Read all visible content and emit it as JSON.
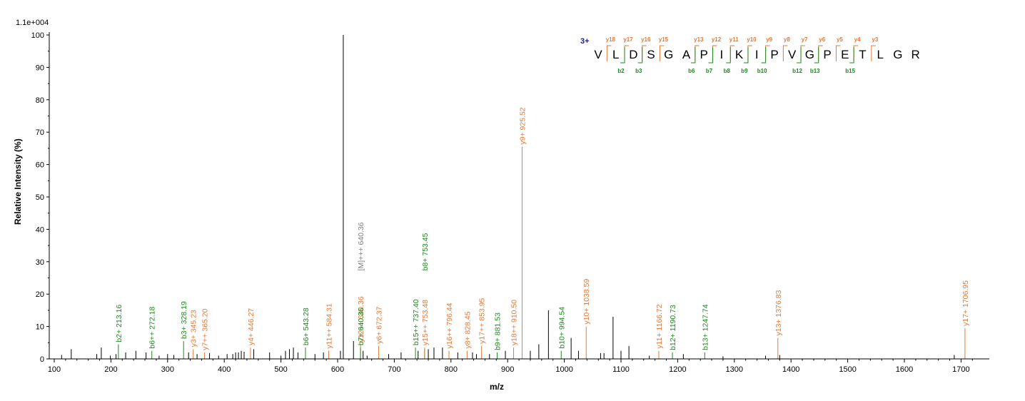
{
  "chart_data": {
    "type": "bar",
    "scale_label": "1.1e+004",
    "xlabel": "m/z",
    "ylabel": "Relative   Intensity (%)",
    "xlim": [
      100,
      1740
    ],
    "ylim": [
      0,
      100
    ],
    "x_ticks": [
      100,
      200,
      300,
      400,
      500,
      600,
      700,
      800,
      900,
      1000,
      1100,
      1200,
      1300,
      1400,
      1500,
      1600,
      1700
    ],
    "y_ticks": [
      0,
      10,
      20,
      30,
      40,
      50,
      60,
      70,
      80,
      90,
      100
    ],
    "colors": {
      "y_ion": "#e07b39",
      "b_ion": "#1e8a1e",
      "precursor": "#808080",
      "unassigned": "#000000",
      "charge": "#1a1a9e"
    },
    "annotated_peaks": [
      {
        "mz": 213.16,
        "intensity": 4.5,
        "label": "b2+ 213.16",
        "ion": "b"
      },
      {
        "mz": 272.18,
        "intensity": 2.5,
        "label": "b6++ 272.18",
        "ion": "b"
      },
      {
        "mz": 328.19,
        "intensity": 5.5,
        "label": "b3+ 328.19",
        "ion": "b"
      },
      {
        "mz": 345.23,
        "intensity": 3.0,
        "label": "y3+ 345.23",
        "ion": "y"
      },
      {
        "mz": 365.2,
        "intensity": 2.0,
        "label": "y7++ 365.20",
        "ion": "y"
      },
      {
        "mz": 446.27,
        "intensity": 3.5,
        "label": "y4+ 446.27",
        "ion": "y"
      },
      {
        "mz": 543.28,
        "intensity": 3.5,
        "label": "b6+ 543.28",
        "ion": "b"
      },
      {
        "mz": 584.31,
        "intensity": 2.5,
        "label": "y11++ 584.31",
        "ion": "y"
      },
      {
        "mz": 640.36,
        "intensity": 3.0,
        "label": "[M]+++ 640.36",
        "ion": "precursor",
        "label_high": true
      },
      {
        "mz": 640.36,
        "intensity": 4.5,
        "label": "y12++ 640.36",
        "ion": "y"
      },
      {
        "mz": 640.36,
        "intensity": 3.5,
        "label": "b7+ 640.36",
        "ion": "b"
      },
      {
        "mz": 672.37,
        "intensity": 4.0,
        "label": "y6+ 672.37",
        "ion": "y"
      },
      {
        "mz": 737.4,
        "intensity": 3.5,
        "label": "b15++ 737.40",
        "ion": "b"
      },
      {
        "mz": 753.45,
        "intensity": 3.0,
        "label": "b8+ 753.45",
        "ion": "b",
        "label_high": true
      },
      {
        "mz": 753.48,
        "intensity": 3.5,
        "label": "y15++ 753.48",
        "ion": "y"
      },
      {
        "mz": 796.44,
        "intensity": 2.5,
        "label": "y16++ 796.44",
        "ion": "y"
      },
      {
        "mz": 828.45,
        "intensity": 2.5,
        "label": "y8+ 828.45",
        "ion": "y"
      },
      {
        "mz": 853.95,
        "intensity": 4.0,
        "label": "y17++ 853.95",
        "ion": "y"
      },
      {
        "mz": 881.53,
        "intensity": 2.0,
        "label": "b9+ 881.53",
        "ion": "b"
      },
      {
        "mz": 910.5,
        "intensity": 3.5,
        "label": "y18++ 910.50",
        "ion": "y"
      },
      {
        "mz": 925.52,
        "intensity": 65.5,
        "label": "y9+ 925.52",
        "ion": "y"
      },
      {
        "mz": 994.54,
        "intensity": 2.5,
        "label": "b10+ 994.54",
        "ion": "b"
      },
      {
        "mz": 1038.59,
        "intensity": 10.0,
        "label": "y10+ 1038.59",
        "ion": "y"
      },
      {
        "mz": 1166.72,
        "intensity": 2.5,
        "label": "y11+ 1166.72",
        "ion": "y"
      },
      {
        "mz": 1190.73,
        "intensity": 2.0,
        "label": "b12+ 1190.73",
        "ion": "b"
      },
      {
        "mz": 1247.74,
        "intensity": 2.0,
        "label": "b13+ 1247.74",
        "ion": "b"
      },
      {
        "mz": 1376.83,
        "intensity": 6.5,
        "label": "y13+ 1376.83",
        "ion": "y"
      },
      {
        "mz": 1706.95,
        "intensity": 9.5,
        "label": "y17+ 1706.95",
        "ion": "y"
      }
    ],
    "unassigned_peaks": [
      {
        "mz": 113,
        "intensity": 1.2
      },
      {
        "mz": 130,
        "intensity": 3.0
      },
      {
        "mz": 175,
        "intensity": 1.5
      },
      {
        "mz": 183,
        "intensity": 3.5
      },
      {
        "mz": 199,
        "intensity": 1.0
      },
      {
        "mz": 209,
        "intensity": 1.5
      },
      {
        "mz": 226,
        "intensity": 2.0
      },
      {
        "mz": 244,
        "intensity": 2.5
      },
      {
        "mz": 262,
        "intensity": 2.0
      },
      {
        "mz": 285,
        "intensity": 1.0
      },
      {
        "mz": 300,
        "intensity": 1.5
      },
      {
        "mz": 311,
        "intensity": 1.2
      },
      {
        "mz": 337,
        "intensity": 2.0
      },
      {
        "mz": 352,
        "intensity": 1.5
      },
      {
        "mz": 374,
        "intensity": 1.8
      },
      {
        "mz": 390,
        "intensity": 1.0
      },
      {
        "mz": 405,
        "intensity": 1.5
      },
      {
        "mz": 415,
        "intensity": 1.5
      },
      {
        "mz": 420,
        "intensity": 2.0
      },
      {
        "mz": 425,
        "intensity": 2.0
      },
      {
        "mz": 430,
        "intensity": 2.5
      },
      {
        "mz": 435,
        "intensity": 2.2
      },
      {
        "mz": 452,
        "intensity": 3.0
      },
      {
        "mz": 480,
        "intensity": 2.0
      },
      {
        "mz": 500,
        "intensity": 1.0
      },
      {
        "mz": 508,
        "intensity": 2.5
      },
      {
        "mz": 515,
        "intensity": 3.0
      },
      {
        "mz": 522,
        "intensity": 3.5
      },
      {
        "mz": 530,
        "intensity": 2.0
      },
      {
        "mz": 560,
        "intensity": 1.5
      },
      {
        "mz": 575,
        "intensity": 2.0
      },
      {
        "mz": 605,
        "intensity": 2.5
      },
      {
        "mz": 610,
        "intensity": 100
      },
      {
        "mz": 628,
        "intensity": 5.5
      },
      {
        "mz": 645,
        "intensity": 2.5
      },
      {
        "mz": 652,
        "intensity": 1.0
      },
      {
        "mz": 690,
        "intensity": 1.5
      },
      {
        "mz": 712,
        "intensity": 2.0
      },
      {
        "mz": 742,
        "intensity": 2.5
      },
      {
        "mz": 760,
        "intensity": 3.0
      },
      {
        "mz": 770,
        "intensity": 3.5
      },
      {
        "mz": 785,
        "intensity": 3.5
      },
      {
        "mz": 812,
        "intensity": 2.0
      },
      {
        "mz": 838,
        "intensity": 2.0
      },
      {
        "mz": 845,
        "intensity": 1.5
      },
      {
        "mz": 868,
        "intensity": 1.5
      },
      {
        "mz": 896,
        "intensity": 2.5
      },
      {
        "mz": 940,
        "intensity": 2.5
      },
      {
        "mz": 955,
        "intensity": 4.5
      },
      {
        "mz": 972,
        "intensity": 15.0
      },
      {
        "mz": 1012,
        "intensity": 6.5
      },
      {
        "mz": 1025,
        "intensity": 2.5
      },
      {
        "mz": 1064,
        "intensity": 1.8
      },
      {
        "mz": 1070,
        "intensity": 1.8
      },
      {
        "mz": 1086,
        "intensity": 13.0
      },
      {
        "mz": 1100,
        "intensity": 2.5
      },
      {
        "mz": 1114,
        "intensity": 4.0
      },
      {
        "mz": 1150,
        "intensity": 1.0
      },
      {
        "mz": 1210,
        "intensity": 1.5
      },
      {
        "mz": 1280,
        "intensity": 0.8
      },
      {
        "mz": 1355,
        "intensity": 1.0
      },
      {
        "mz": 1380,
        "intensity": 1.2
      },
      {
        "mz": 1688,
        "intensity": 1.2
      }
    ],
    "sequence": {
      "charge_label": "3+",
      "residues": [
        "V",
        "L",
        "D",
        "S",
        "G",
        "A",
        "P",
        "I",
        "K",
        "I",
        "P",
        "V",
        "G",
        "P",
        "E",
        "T",
        "L",
        "G",
        "R"
      ],
      "y_ions": [
        {
          "label": "y18",
          "after": 1
        },
        {
          "label": "y17",
          "after": 2
        },
        {
          "label": "y16",
          "after": 3
        },
        {
          "label": "y15",
          "after": 4
        },
        {
          "label": "y13",
          "after": 6
        },
        {
          "label": "y12",
          "after": 7
        },
        {
          "label": "y11",
          "after": 8
        },
        {
          "label": "y10",
          "after": 9
        },
        {
          "label": "y9",
          "after": 10
        },
        {
          "label": "y8",
          "after": 11
        },
        {
          "label": "y7",
          "after": 12
        },
        {
          "label": "y6",
          "after": 13
        },
        {
          "label": "y5",
          "after": 14
        },
        {
          "label": "y4",
          "after": 15
        },
        {
          "label": "y3",
          "after": 16
        }
      ],
      "b_ions": [
        {
          "label": "b2",
          "after": 2
        },
        {
          "label": "b3",
          "after": 3
        },
        {
          "label": "b6",
          "after": 6
        },
        {
          "label": "b7",
          "after": 7
        },
        {
          "label": "b8",
          "after": 8
        },
        {
          "label": "b9",
          "after": 9
        },
        {
          "label": "b10",
          "after": 10
        },
        {
          "label": "b12",
          "after": 12
        },
        {
          "label": "b13",
          "after": 13
        },
        {
          "label": "b15",
          "after": 15
        }
      ]
    }
  }
}
